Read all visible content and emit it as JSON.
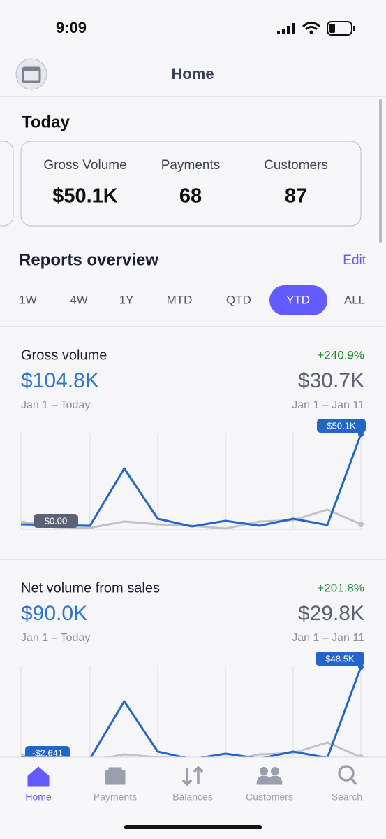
{
  "status_bar": {
    "time": "9:09"
  },
  "header": {
    "title": "Home"
  },
  "today": {
    "title": "Today",
    "stats": [
      {
        "label": "Gross Volume",
        "value": "$50.1K"
      },
      {
        "label": "Payments",
        "value": "68"
      },
      {
        "label": "Customers",
        "value": "87"
      }
    ]
  },
  "reports": {
    "title": "Reports overview",
    "edit": "Edit",
    "ranges": [
      "1W",
      "4W",
      "1Y",
      "MTD",
      "QTD",
      "YTD",
      "ALL"
    ],
    "selected": "YTD",
    "cards": [
      {
        "title": "Gross volume",
        "change": "+240.9%",
        "total": "$104.8K",
        "total_period": "Jan 1 – Today",
        "compare": "$30.7K",
        "compare_period": "Jan 1 – Jan 11",
        "max_label": "$50.1K",
        "min_label": "$0.00"
      },
      {
        "title": "Net volume from sales",
        "change": "+201.8%",
        "total": "$90.0K",
        "total_period": "Jan 1 – Today",
        "compare": "$29.8K",
        "compare_period": "Jan 1 – Jan 11",
        "max_label": "$48.5K",
        "min_label": "-$2,641"
      }
    ]
  },
  "tab_bar": {
    "tabs": [
      "Home",
      "Payments",
      "Balances",
      "Customers",
      "Search"
    ],
    "selected": "Home"
  }
}
